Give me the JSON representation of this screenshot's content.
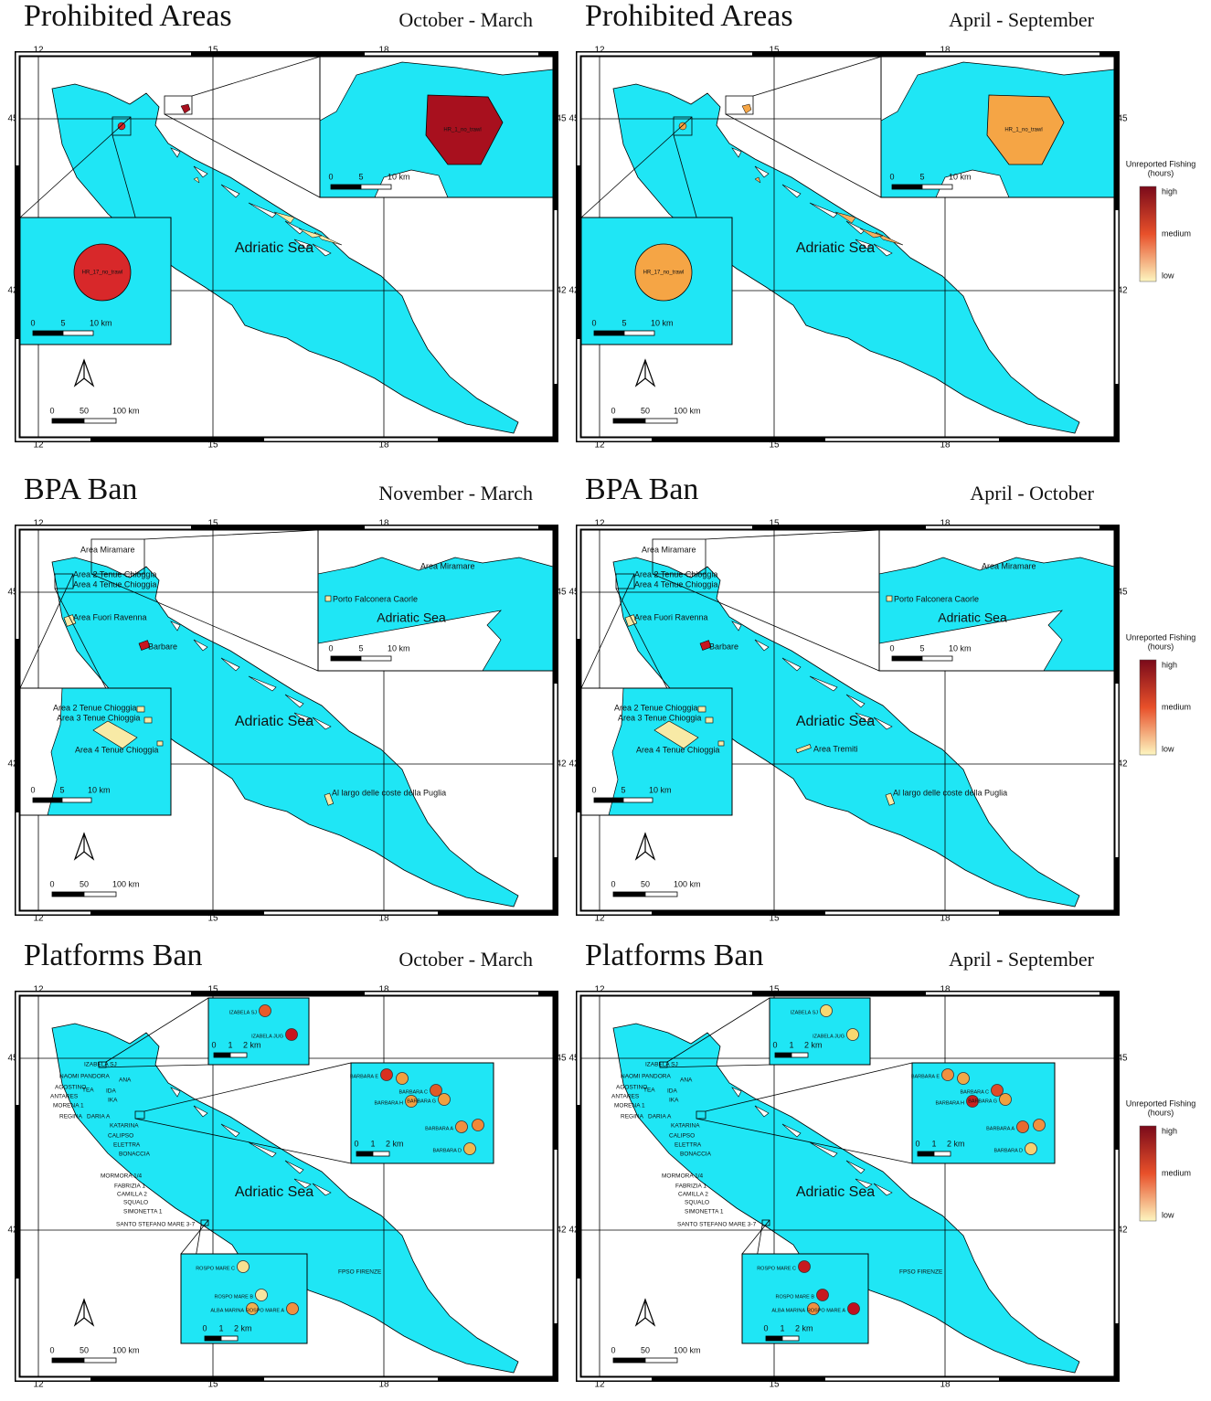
{
  "legend": {
    "title": "Unreported Fishing",
    "unit": "(hours)",
    "levels": [
      "high",
      "medium",
      "low"
    ],
    "colors": [
      "#7a0a1a",
      "#e8502a",
      "#fdf6c0"
    ]
  },
  "panels": [
    {
      "title": "Prohibited Areas",
      "period": "October - March",
      "lon": [
        "12",
        "15",
        "18"
      ],
      "lat": [
        "45",
        "42"
      ],
      "sea": "Adriatic Sea",
      "scale": [
        "0",
        "50",
        "100 km"
      ],
      "insets": [
        {
          "scale": [
            "0",
            "5",
            "10 km"
          ],
          "areas": [
            {
              "label": "HR_1_no_trawl",
              "color": "#a8101e"
            }
          ]
        },
        {
          "scale": [
            "0",
            "5",
            "10 km"
          ],
          "areas": [
            {
              "label": "HR_17_no_trawl",
              "color": "#d8282a"
            }
          ]
        }
      ]
    },
    {
      "title": "Prohibited Areas",
      "period": "April - September",
      "lon": [
        "12",
        "15",
        "18"
      ],
      "lat": [
        "45",
        "42"
      ],
      "sea": "Adriatic Sea",
      "scale": [
        "0",
        "50",
        "100 km"
      ],
      "insets": [
        {
          "scale": [
            "0",
            "5",
            "10 km"
          ],
          "areas": [
            {
              "label": "HR_1_no_trawl",
              "color": "#f5a545"
            }
          ]
        },
        {
          "scale": [
            "0",
            "5",
            "10 km"
          ],
          "areas": [
            {
              "label": "HR_17_no_trawl",
              "color": "#f5a545"
            }
          ]
        }
      ]
    },
    {
      "title": "BPA Ban",
      "period": "November - March",
      "lon": [
        "12",
        "15",
        "18"
      ],
      "lat": [
        "45",
        "42"
      ],
      "sea": "Adriatic Sea",
      "scale": [
        "0",
        "50",
        "100 km"
      ],
      "labels": [
        "Area Miramare",
        "Area 2 Tenue Chioggia",
        "Area 4 Tenue Chioggia"
      ],
      "areas": [
        {
          "label": "Area Fuori Ravenna",
          "color": "#f8eaa6"
        },
        {
          "label": "Barbare",
          "color": "#c8141e"
        },
        {
          "label": "Al largo delle coste della Puglia",
          "color": "#f8eaa6"
        }
      ],
      "insets": [
        {
          "scale": [
            "0",
            "5",
            "10 km"
          ],
          "labels": [
            "Area Miramare",
            "Porto Falconera Caorle",
            "Adriatic Sea"
          ]
        },
        {
          "scale": [
            "0",
            "5",
            "10 km"
          ],
          "labels": [
            "Area 2 Tenue Chioggia",
            "Area 3 Tenue Chioggia",
            "Area 4 Tenue Chioggia"
          ]
        }
      ]
    },
    {
      "title": "BPA Ban",
      "period": "April - October",
      "lon": [
        "12",
        "15",
        "18"
      ],
      "lat": [
        "45",
        "42"
      ],
      "sea": "Adriatic Sea",
      "scale": [
        "0",
        "50",
        "100 km"
      ],
      "labels": [
        "Area Miramare",
        "Area 2 Tenue Chioggia",
        "Area 4 Tenue Chioggia"
      ],
      "areas": [
        {
          "label": "Area Fuori Ravenna",
          "color": "#f8eaa6"
        },
        {
          "label": "Barbare",
          "color": "#c8141e"
        },
        {
          "label": "Al largo delle coste della Puglia",
          "color": "#f8eaa6"
        },
        {
          "label": "Area Tremiti",
          "color": "#f8e0a0"
        }
      ],
      "insets": [
        {
          "scale": [
            "0",
            "5",
            "10 km"
          ],
          "labels": [
            "Area Miramare",
            "Porto Falconera Caorle",
            "Adriatic Sea"
          ]
        },
        {
          "scale": [
            "0",
            "5",
            "10 km"
          ],
          "labels": [
            "Area 2 Tenue Chioggia",
            "Area 3 Tenue Chioggia",
            "Area 4 Tenue Chioggia"
          ]
        }
      ]
    },
    {
      "title": "Platforms Ban",
      "period": "October - March",
      "lon": [
        "12",
        "15",
        "18"
      ],
      "lat": [
        "45",
        "42"
      ],
      "sea": "Adriatic Sea",
      "scale": [
        "0",
        "50",
        "100 km"
      ],
      "labels": [
        "IZABELA SJ",
        "NAOMI PANDORA",
        "ANA",
        "AGOSTINO",
        "ANTARES",
        "TEA",
        "IDA",
        "IKA",
        "MORENA 1",
        "REGINA",
        "DARIA A",
        "KATARINA",
        "CALIPSO",
        "ELETTRA",
        "BONACCIA",
        "MORMORA 1/4",
        "FABRIZIA 1",
        "CAMILLA 2",
        "SQUALO",
        "SIMONETTA 1",
        "SANTO STEFANO MARE 3-7",
        "FPSO FIRENZE"
      ],
      "insets": [
        {
          "scale": [
            "0",
            "1",
            "2 km"
          ],
          "points": [
            {
              "label": "IZABELA SJ",
              "color": "#e85a2a"
            },
            {
              "label": "IZABELA JUG",
              "color": "#c8141e"
            }
          ]
        },
        {
          "scale": [
            "0",
            "1",
            "2 km"
          ],
          "points": [
            {
              "label": "BARBARA E",
              "color": "#d83020"
            },
            {
              "label": null,
              "color": "#f0a040"
            },
            {
              "label": "BARBARA C",
              "color": "#e05a28"
            },
            {
              "label": "BARBARA H",
              "color": "#f0a040"
            },
            {
              "label": "BARBARA G",
              "color": "#f0a040"
            },
            {
              "label": "BARBARA A",
              "color": "#f09040"
            },
            {
              "label": null,
              "color": "#f08838"
            },
            {
              "label": "BARBARA D",
              "color": "#f0b850"
            }
          ]
        },
        {
          "scale": [
            "0",
            "1",
            "2 km"
          ],
          "points": [
            {
              "label": "ROSPO MARE C",
              "color": "#f8e090"
            },
            {
              "label": "ROSPO MARE B",
              "color": "#f8e4a0"
            },
            {
              "label": "ALBA MARINA",
              "color": "#f0b050"
            },
            {
              "label": "ROSPO MARE A",
              "color": "#f09040"
            }
          ]
        }
      ]
    },
    {
      "title": "Platforms Ban",
      "period": "April - September",
      "lon": [
        "12",
        "15",
        "18"
      ],
      "lat": [
        "45",
        "42"
      ],
      "sea": "Adriatic Sea",
      "scale": [
        "0",
        "50",
        "100 km"
      ],
      "labels": [
        "IZABELA SJ",
        "NAOMI PANDORA",
        "ANA",
        "AGOSTINO",
        "ANTARES",
        "TEA",
        "IDA",
        "IKA",
        "MORENA 1",
        "REGINA",
        "DARIA A",
        "KATARINA",
        "CALIPSO",
        "ELETTRA",
        "BONACCIA",
        "MORMORA 1/4",
        "FABRIZIA 1",
        "CAMILLA 2",
        "SQUALO",
        "SIMONETTA 1",
        "SANTO STEFANO MARE 3-7",
        "FPSO FIRENZE"
      ],
      "insets": [
        {
          "scale": [
            "0",
            "1",
            "2 km"
          ],
          "points": [
            {
              "label": "IZABELA SJ",
              "color": "#f8d870"
            },
            {
              "label": "IZABELA JUG",
              "color": "#f8d870"
            }
          ]
        },
        {
          "scale": [
            "0",
            "1",
            "2 km"
          ],
          "points": [
            {
              "label": "BARBARA E",
              "color": "#f09040"
            },
            {
              "label": null,
              "color": "#f0a848"
            },
            {
              "label": "BARBARA C",
              "color": "#e04a28"
            },
            {
              "label": "BARBARA H",
              "color": "#c8201e"
            },
            {
              "label": "BARBARA G",
              "color": "#f0a040"
            },
            {
              "label": "BARBARA A",
              "color": "#e86a30"
            },
            {
              "label": null,
              "color": "#f09040"
            },
            {
              "label": "BARBARA D",
              "color": "#f8d070"
            }
          ]
        },
        {
          "scale": [
            "0",
            "1",
            "2 km"
          ],
          "points": [
            {
              "label": "ROSPO MARE C",
              "color": "#c81a1e"
            },
            {
              "label": "ROSPO MARE B",
              "color": "#c81a1e"
            },
            {
              "label": "ALBA MARINA",
              "color": "#f09040"
            },
            {
              "label": "ROSPO MARE A",
              "color": "#c01020"
            }
          ]
        }
      ]
    }
  ]
}
